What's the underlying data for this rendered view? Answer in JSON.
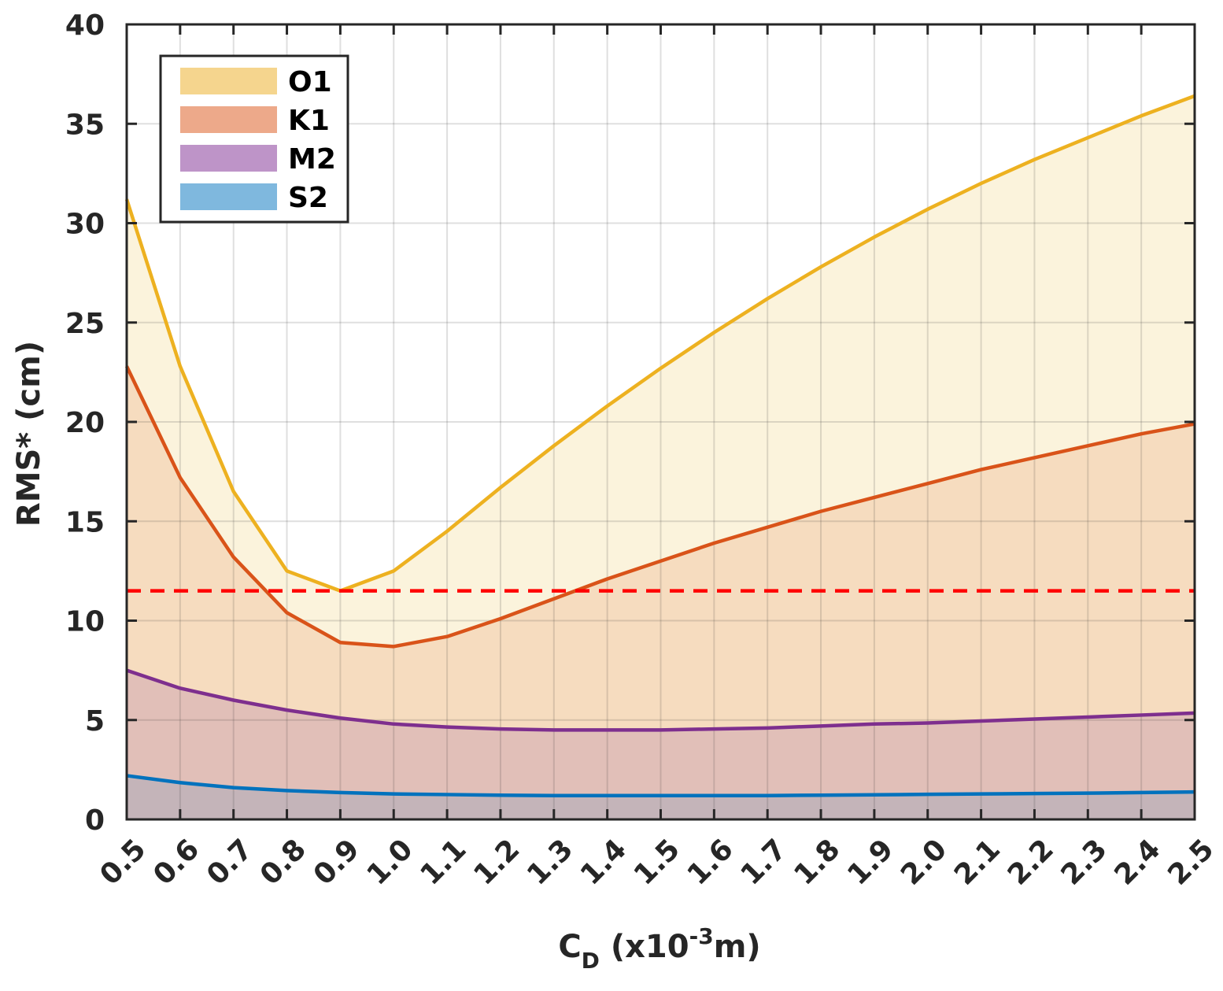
{
  "chart_data": {
    "type": "area",
    "title": "",
    "xlabel": {
      "base": "C",
      "sub": "D",
      "paren_open": " (x10",
      "sup": "-3",
      "unit": "m)"
    },
    "ylabel": "RMS* (cm)",
    "x": [
      0.5,
      0.6,
      0.7,
      0.8,
      0.9,
      1.0,
      1.1,
      1.2,
      1.3,
      1.4,
      1.5,
      1.6,
      1.7,
      1.8,
      1.9,
      2.0,
      2.1,
      2.2,
      2.3,
      2.4,
      2.5
    ],
    "x_tick_labels": [
      "0.5",
      "0.6",
      "0.7",
      "0.8",
      "0.9",
      "1.0",
      "1.1",
      "1.2",
      "1.3",
      "1.4",
      "1.5",
      "1.6",
      "1.7",
      "1.8",
      "1.9",
      "2.0",
      "2.1",
      "2.2",
      "2.3",
      "2.4",
      "2.5"
    ],
    "xlim": [
      0.5,
      2.5
    ],
    "ylim": [
      0,
      40
    ],
    "y_ticks": [
      0,
      5,
      10,
      15,
      20,
      25,
      30,
      35,
      40
    ],
    "y_tick_labels": [
      "0",
      "5",
      "10",
      "15",
      "20",
      "25",
      "30",
      "35",
      "40"
    ],
    "grid": true,
    "legend_position": "top-left",
    "series": [
      {
        "name": "O1",
        "line_color": "#EDB120",
        "fill_color": "#FBF3DC",
        "legend_color": "#F5D58E",
        "values": [
          31.2,
          22.8,
          16.5,
          12.5,
          11.5,
          12.5,
          14.5,
          16.7,
          18.8,
          20.8,
          22.7,
          24.5,
          26.2,
          27.8,
          29.3,
          30.7,
          32.0,
          33.2,
          34.3,
          35.4,
          36.4
        ]
      },
      {
        "name": "K1",
        "line_color": "#D95319",
        "fill_color": "#F6DCBF",
        "legend_color": "#EDA98A",
        "values": [
          22.8,
          17.2,
          13.2,
          10.4,
          8.9,
          8.7,
          9.2,
          10.1,
          11.1,
          12.1,
          13.0,
          13.9,
          14.7,
          15.5,
          16.2,
          16.9,
          17.6,
          18.2,
          18.8,
          19.4,
          19.9
        ]
      },
      {
        "name": "M2",
        "line_color": "#7E2F8E",
        "fill_color": "#E1BFB8",
        "legend_color": "#BE94C8",
        "values": [
          7.5,
          6.6,
          6.0,
          5.5,
          5.1,
          4.8,
          4.65,
          4.55,
          4.5,
          4.5,
          4.5,
          4.55,
          4.6,
          4.7,
          4.8,
          4.85,
          4.95,
          5.05,
          5.15,
          5.25,
          5.35
        ]
      },
      {
        "name": "S2",
        "line_color": "#0072BD",
        "fill_color": "#C4B4B9",
        "legend_color": "#7FB8DE",
        "values": [
          2.2,
          1.85,
          1.6,
          1.45,
          1.35,
          1.28,
          1.25,
          1.22,
          1.2,
          1.2,
          1.2,
          1.2,
          1.2,
          1.22,
          1.24,
          1.26,
          1.28,
          1.3,
          1.32,
          1.35,
          1.38
        ]
      }
    ],
    "reference_line": {
      "y": 11.5,
      "color": "#FF0000",
      "style": "dashed"
    }
  }
}
